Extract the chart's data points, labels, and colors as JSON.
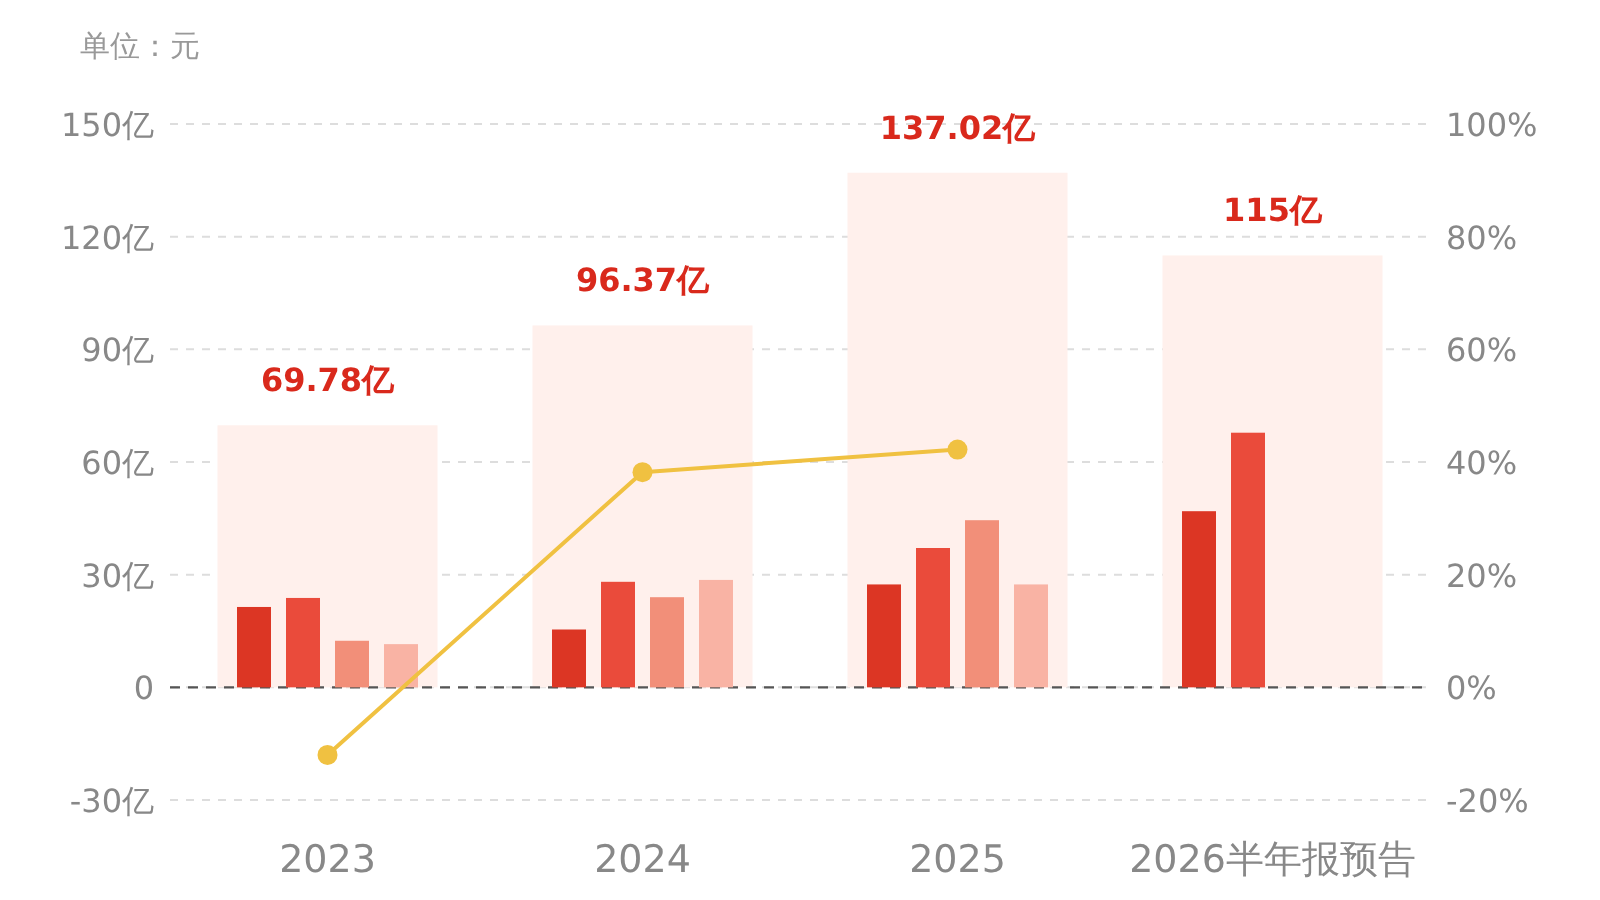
{
  "chart_data": {
    "type": "bar",
    "categories": [
      "2023",
      "2024",
      "2025",
      "2026半年报预告"
    ],
    "series": [
      {
        "color": "#fff0ec",
        "values": [
          69.78,
          96.37,
          137.02,
          115
        ],
        "value_labels": [
          "69.78亿",
          "96.37亿",
          "137.02亿",
          "115亿"
        ]
      },
      {
        "color": "#dc3624",
        "values": [
          21.4,
          15.4,
          27.4,
          46.9
        ]
      },
      {
        "color": "#ea4b3b",
        "values": [
          23.8,
          28.1,
          37.1,
          67.8
        ]
      },
      {
        "color": "#f28f79",
        "values": [
          12.4,
          24.0,
          44.5,
          null
        ]
      },
      {
        "color": "#f9b3a4",
        "values": [
          11.5,
          28.6,
          27.4,
          null
        ]
      },
      {
        "type": "line",
        "axis": "y2",
        "color": "#f0c141",
        "marker": "circle",
        "values": [
          -12.0,
          38.2,
          42.2,
          null
        ]
      }
    ],
    "ylim": [
      -30,
      150
    ],
    "yticks": [
      {
        "value": -30,
        "label": "-30亿"
      },
      {
        "value": 0,
        "label": "0"
      },
      {
        "value": 30,
        "label": "30亿"
      },
      {
        "value": 60,
        "label": "60亿"
      },
      {
        "value": 90,
        "label": "90亿"
      },
      {
        "value": 120,
        "label": "120亿"
      },
      {
        "value": 150,
        "label": "150亿"
      }
    ],
    "y2lim": [
      -20,
      100
    ],
    "y2ticks": [
      {
        "value": -20,
        "label": "-20%"
      },
      {
        "value": 0,
        "label": "0%"
      },
      {
        "value": 20,
        "label": "20%"
      },
      {
        "value": 40,
        "label": "40%"
      },
      {
        "value": 60,
        "label": "60%"
      },
      {
        "value": 80,
        "label": "80%"
      },
      {
        "value": 100,
        "label": "100%"
      }
    ],
    "grid": "y",
    "ref_lines": [
      {
        "axis": "y",
        "value": 0,
        "color": "#555555",
        "line_style": "dashed"
      }
    ],
    "annotations": [
      "单位：元"
    ]
  }
}
